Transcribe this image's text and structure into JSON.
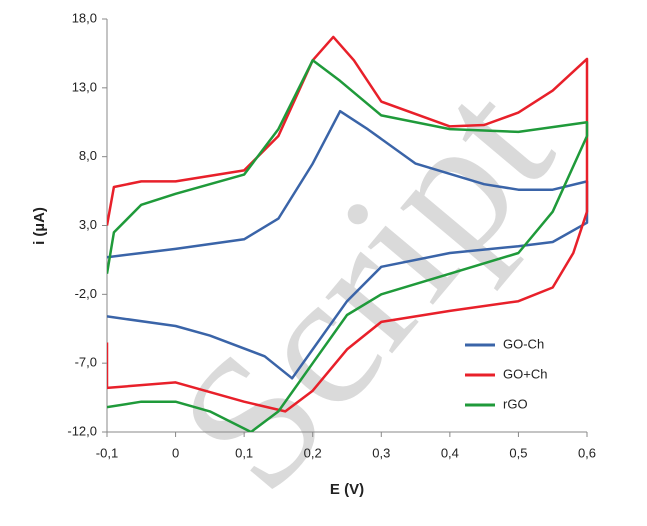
{
  "chart_data": {
    "type": "line",
    "xlabel": "E (V)",
    "ylabel": "i (µA)",
    "watermark": "Script",
    "xlim": [
      -0.1,
      0.6
    ],
    "xticks": [
      {
        "value": -0.1,
        "label": "-0,1"
      },
      0,
      {
        "value": 0.1,
        "label": "0,1"
      },
      {
        "value": 0.2,
        "label": "0,2"
      },
      {
        "value": 0.3,
        "label": "0,3"
      },
      {
        "value": 0.4,
        "label": "0,4"
      },
      {
        "value": 0.5,
        "label": "0,5"
      },
      {
        "value": 0.6,
        "label": "0,6"
      }
    ],
    "ylim": [
      -12,
      18
    ],
    "yticks": [
      {
        "value": -12,
        "label": "-12,0"
      },
      {
        "value": -7,
        "label": "-7,0"
      },
      {
        "value": -2,
        "label": "-2,0"
      },
      {
        "value": 3,
        "label": "3,0"
      },
      {
        "value": 8,
        "label": "8,0"
      },
      {
        "value": 13,
        "label": "13,0"
      },
      {
        "value": 18,
        "label": "18,0"
      }
    ],
    "legend": "lower right",
    "series": [
      {
        "name": "GO-Ch",
        "color": "#3a64a8",
        "x": [
          -0.1,
          0,
          0.1,
          0.15,
          0.2,
          0.24,
          0.28,
          0.35,
          0.45,
          0.5,
          0.55,
          0.6,
          0.6,
          0.55,
          0.5,
          0.4,
          0.3,
          0.25,
          0.2,
          0.17,
          0.13,
          0.05,
          0,
          -0.1
        ],
        "values": [
          0.7,
          1.3,
          2.0,
          3.5,
          7.5,
          11.3,
          10,
          7.5,
          6,
          5.6,
          5.6,
          6.2,
          3.2,
          1.8,
          1.5,
          1,
          0,
          -2.5,
          -6,
          -8.1,
          -6.5,
          -5,
          -4.3,
          -3.6
        ]
      },
      {
        "name": "GO+Ch",
        "color": "#e8202a",
        "x": [
          -0.1,
          -0.09,
          -0.05,
          0,
          0.1,
          0.15,
          0.2,
          0.23,
          0.26,
          0.3,
          0.4,
          0.45,
          0.5,
          0.55,
          0.6,
          0.6,
          0.58,
          0.55,
          0.5,
          0.4,
          0.3,
          0.25,
          0.2,
          0.16,
          0.1,
          0,
          -0.1,
          -0.1
        ],
        "values": [
          3,
          5.8,
          6.2,
          6.2,
          7,
          9.5,
          15,
          16.7,
          15,
          12,
          10.2,
          10.3,
          11.2,
          12.8,
          15.1,
          4,
          1,
          -1.5,
          -2.5,
          -3.2,
          -4,
          -6,
          -9,
          -10.5,
          -9.8,
          -8.4,
          -8.8,
          -5.5
        ]
      },
      {
        "name": "rGO",
        "color": "#1f9a3a",
        "x": [
          -0.1,
          -0.09,
          -0.05,
          0,
          0.1,
          0.15,
          0.2,
          0.24,
          0.3,
          0.4,
          0.5,
          0.6,
          0.6,
          0.55,
          0.5,
          0.4,
          0.3,
          0.25,
          0.2,
          0.15,
          0.11,
          0.05,
          0,
          -0.05,
          -0.1
        ],
        "values": [
          -0.5,
          2.5,
          4.5,
          5.3,
          6.7,
          10,
          15,
          13.5,
          11,
          10,
          9.8,
          10.5,
          9.5,
          4,
          1,
          -0.5,
          -2,
          -3.5,
          -7,
          -10.5,
          -12,
          -10.5,
          -9.8,
          -9.8,
          -10.2
        ]
      }
    ]
  }
}
